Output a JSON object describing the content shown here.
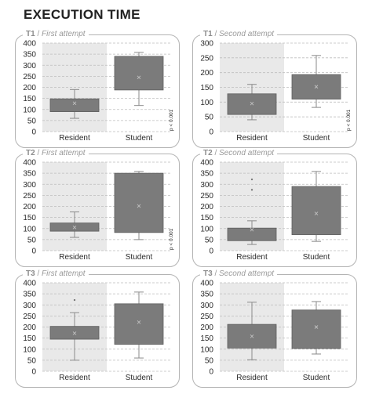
{
  "figure_title": "EXECUTION TIME",
  "chart_data": [
    {
      "type": "box",
      "panel": "T1",
      "subtitle": "First attempt",
      "categories": [
        "Resident",
        "Student"
      ],
      "ylim": [
        0,
        400
      ],
      "yticks": [
        "0",
        "50",
        "100",
        "150",
        "200",
        "250",
        "300",
        "350",
        "400"
      ],
      "boxes": [
        {
          "min": 60,
          "q1": 90,
          "q3": 148,
          "max": 190,
          "mean": 128,
          "outliers": []
        },
        {
          "min": 118,
          "q1": 188,
          "q3": 340,
          "max": 358,
          "mean": 245,
          "outliers": []
        }
      ],
      "annotation": "p < 0.001",
      "grid": "dashed horizontal"
    },
    {
      "type": "box",
      "panel": "T1",
      "subtitle": "Second attempt",
      "categories": [
        "Resident",
        "Student"
      ],
      "ylim": [
        0,
        300
      ],
      "yticks": [
        "0",
        "50",
        "100",
        "150",
        "200",
        "250",
        "300"
      ],
      "boxes": [
        {
          "min": 40,
          "q1": 58,
          "q3": 128,
          "max": 160,
          "mean": 95,
          "outliers": []
        },
        {
          "min": 82,
          "q1": 110,
          "q3": 193,
          "max": 258,
          "mean": 152,
          "outliers": []
        }
      ],
      "annotation": "p < 0.001",
      "grid": "dashed horizontal"
    },
    {
      "type": "box",
      "panel": "T2",
      "subtitle": "First attempt",
      "categories": [
        "Resident",
        "Student"
      ],
      "ylim": [
        0,
        400
      ],
      "yticks": [
        "0",
        "50",
        "100",
        "150",
        "200",
        "250",
        "300",
        "350",
        "400"
      ],
      "boxes": [
        {
          "min": 60,
          "q1": 88,
          "q3": 125,
          "max": 175,
          "mean": 105,
          "outliers": []
        },
        {
          "min": 50,
          "q1": 82,
          "q3": 350,
          "max": 358,
          "mean": 202,
          "outliers": []
        }
      ],
      "annotation": "p < 0.001",
      "grid": "dashed horizontal"
    },
    {
      "type": "box",
      "panel": "T2",
      "subtitle": "Second attempt",
      "categories": [
        "Resident",
        "Student"
      ],
      "ylim": [
        0,
        400
      ],
      "yticks": [
        "0",
        "50",
        "100",
        "150",
        "200",
        "250",
        "300",
        "350",
        "400"
      ],
      "boxes": [
        {
          "min": 28,
          "q1": 45,
          "q3": 102,
          "max": 135,
          "mean": 95,
          "outliers": [
            275,
            322
          ]
        },
        {
          "min": 42,
          "q1": 72,
          "q3": 290,
          "max": 358,
          "mean": 168,
          "outliers": []
        }
      ],
      "annotation": "",
      "grid": "dashed horizontal"
    },
    {
      "type": "box",
      "panel": "T3",
      "subtitle": "First attempt",
      "categories": [
        "Resident",
        "Student"
      ],
      "ylim": [
        0,
        400
      ],
      "yticks": [
        "0",
        "50",
        "100",
        "150",
        "200",
        "250",
        "300",
        "350",
        "400"
      ],
      "boxes": [
        {
          "min": 50,
          "q1": 145,
          "q3": 203,
          "max": 265,
          "mean": 172,
          "outliers": [
            322
          ]
        },
        {
          "min": 60,
          "q1": 122,
          "q3": 305,
          "max": 358,
          "mean": 222,
          "outliers": []
        }
      ],
      "annotation": "",
      "grid": "dashed horizontal"
    },
    {
      "type": "box",
      "panel": "T3",
      "subtitle": "Second attempt",
      "categories": [
        "Resident",
        "Student"
      ],
      "ylim": [
        0,
        400
      ],
      "yticks": [
        "0",
        "50",
        "100",
        "150",
        "200",
        "250",
        "300",
        "350",
        "400"
      ],
      "boxes": [
        {
          "min": 52,
          "q1": 105,
          "q3": 212,
          "max": 312,
          "mean": 158,
          "outliers": []
        },
        {
          "min": 78,
          "q1": 103,
          "q3": 277,
          "max": 315,
          "mean": 200,
          "outliers": []
        }
      ],
      "annotation": "",
      "grid": "dashed horizontal"
    }
  ],
  "colors": {
    "box_fill": "#7b7b7b",
    "box_stroke": "#5e5e5e",
    "whisker": "#8a8a8a",
    "resident_background": "#e9e9e9",
    "gridline": "#bdbdbd",
    "axis_text": "#2b2b2b",
    "mean_marker": "#bfbfbf"
  }
}
